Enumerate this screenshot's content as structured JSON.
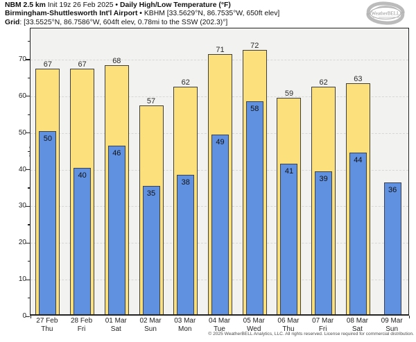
{
  "header": {
    "line1": {
      "model": "NBM 2.5 km",
      "init": " Init 19z 26 Feb 2025 ",
      "sep": "• ",
      "title": "Daily High/Low Temperature (°F)"
    },
    "line2": {
      "station": "Birmingham-Shuttlesworth Int'l Airport",
      "sep": " • ",
      "details": "KBHM [33.5629°N, 86.7535°W, 650ft elev]"
    },
    "line3": {
      "label": "Grid",
      "details": ": [33.5525°N, 86.7586°W, 604ft elev, 0.78mi to the SSW (202.3)°]"
    }
  },
  "logo": {
    "text": "WeatherBELL"
  },
  "chart_data": {
    "type": "bar",
    "title": "Daily High/Low Temperature (°F)",
    "ylabel": "Temperature [°F]",
    "ylim": [
      0,
      78.5
    ],
    "yticks": [
      0,
      10,
      20,
      30,
      40,
      50,
      60,
      70
    ],
    "grid": "horizontal dashed",
    "legend_position": "none",
    "categories": [
      {
        "date": "27 Feb",
        "day": "Thu"
      },
      {
        "date": "28 Feb",
        "day": "Fri"
      },
      {
        "date": "01 Mar",
        "day": "Sat"
      },
      {
        "date": "02 Mar",
        "day": "Sun"
      },
      {
        "date": "03 Mar",
        "day": "Mon"
      },
      {
        "date": "04 Mar",
        "day": "Tue"
      },
      {
        "date": "05 Mar",
        "day": "Wed"
      },
      {
        "date": "06 Mar",
        "day": "Thu"
      },
      {
        "date": "07 Mar",
        "day": "Fri"
      },
      {
        "date": "08 Mar",
        "day": "Sat"
      },
      {
        "date": "09 Mar",
        "day": "Sun"
      }
    ],
    "series": [
      {
        "name": "High",
        "color": "#fbe07c",
        "values": [
          67,
          67,
          68,
          57,
          62,
          71,
          72,
          59,
          62,
          63,
          null
        ]
      },
      {
        "name": "Low",
        "color": "#6090e0",
        "values": [
          50,
          40,
          46,
          35,
          38,
          49,
          58,
          41,
          39,
          44,
          36
        ]
      }
    ]
  },
  "footer": {
    "copyright": "© 2025 WeatherBELL Analytics, LLC. All rights reserved. License required for commercial distribution."
  }
}
